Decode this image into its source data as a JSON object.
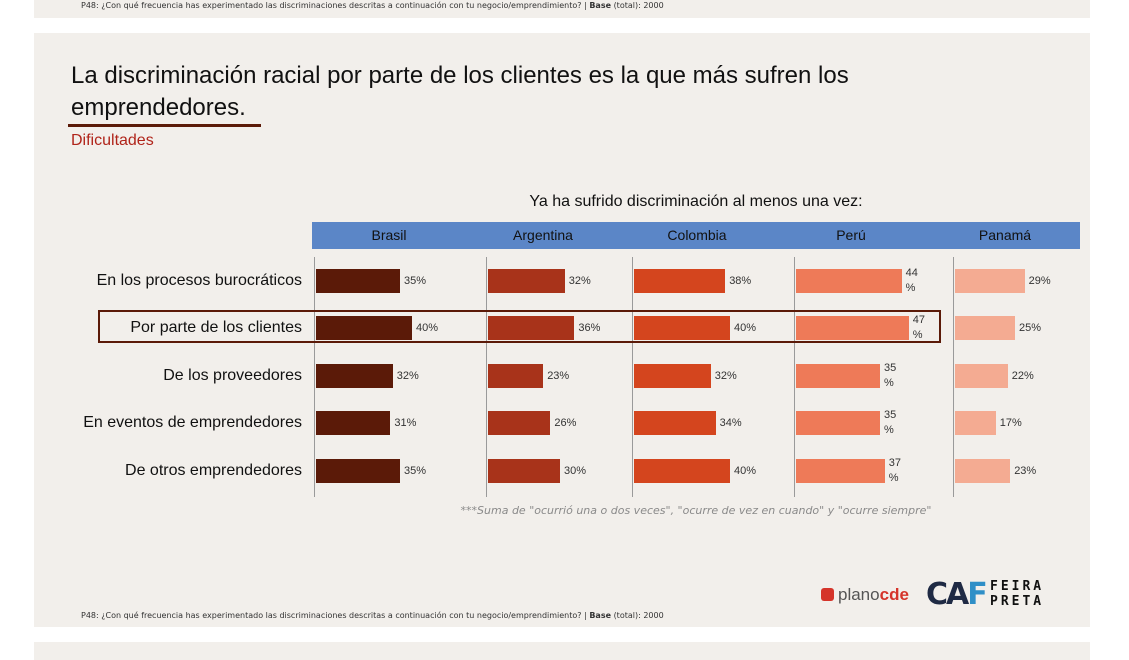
{
  "top_note": {
    "question": "P48: ¿Con qué frecuencia has experimentado las discriminaciones descritas a continuación con tu negocio/emprendimiento? |",
    "base_label": "Base",
    "base_value": "(total): 2000"
  },
  "slide": {
    "title": "La discriminación racial por parte de los clientes es la que más sufren los emprendedores.",
    "subtitle": "Dificultades"
  },
  "chart_data": {
    "type": "bar",
    "title": "Ya ha sufrido discriminación al menos una vez:",
    "categories": [
      "En los procesos burocráticos",
      "Por parte de los clientes",
      "De los proveedores",
      "En eventos de emprendedores",
      "De otros emprendedores"
    ],
    "series": [
      {
        "name": "Brasil",
        "color": "#5b1a08",
        "values": [
          35,
          40,
          32,
          31,
          35
        ]
      },
      {
        "name": "Argentina",
        "color": "#a8331a",
        "values": [
          32,
          36,
          23,
          26,
          30
        ]
      },
      {
        "name": "Colombia",
        "color": "#d4451e",
        "values": [
          38,
          40,
          32,
          34,
          40
        ]
      },
      {
        "name": "Perú",
        "color": "#ee7a58",
        "values": [
          44,
          47,
          35,
          35,
          37
        ]
      },
      {
        "name": "Panamá",
        "color": "#f4ab92",
        "values": [
          29,
          25,
          22,
          17,
          23
        ]
      }
    ],
    "value_suffix": "%",
    "highlighted_category": "Por parte de los clientes",
    "header_color": "#5b86c7",
    "orientation": "horizontal"
  },
  "footnote": "***Suma de \"ocurrió una o dos veces\", \"ocurre de vez en cuando\" y \"ocurre siempre\"",
  "source": {
    "question": "P48: ¿Con qué frecuencia has experimentado las discriminaciones descritas a continuación con tu negocio/emprendimiento? |",
    "base_label": "Base",
    "base_value": "(total): 2000"
  },
  "logos": {
    "plano_a": "plano",
    "plano_b": "cde",
    "caf_a": "CA",
    "caf_b": "F",
    "feira_line1": "FEIRA",
    "feira_line2": "PRETA"
  }
}
